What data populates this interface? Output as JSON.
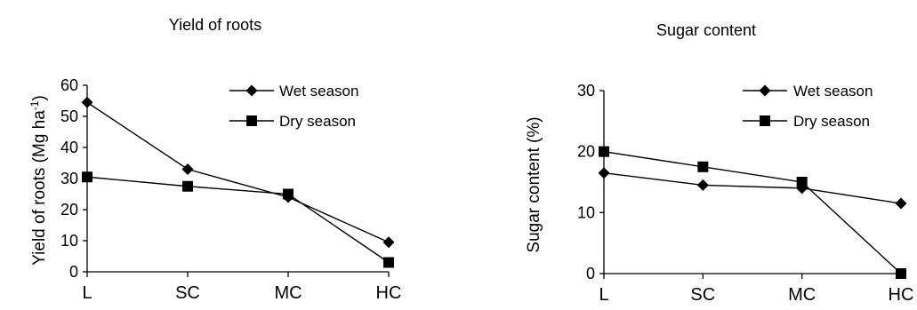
{
  "chart_data": [
    {
      "type": "line",
      "title": "Yield of roots",
      "ylabel": "Yield of roots (Mg ha",
      "ylabel_sup": "-1",
      "ylabel_close": ")",
      "xlabel": "",
      "categories": [
        "L",
        "SC",
        "MC",
        "HC"
      ],
      "ylim": [
        0,
        60
      ],
      "yticks": [
        "0",
        "10",
        "20",
        "30",
        "40",
        "50",
        "60"
      ],
      "grid": false,
      "legend_position": "top-right",
      "series": [
        {
          "name": "Wet season",
          "marker": "diamond",
          "values": [
            54.5,
            33.0,
            24.0,
            9.5
          ]
        },
        {
          "name": "Dry season",
          "marker": "square",
          "values": [
            30.5,
            27.5,
            25.0,
            3.0
          ]
        }
      ]
    },
    {
      "type": "line",
      "title": "Sugar content",
      "ylabel": "Sugar content (%)",
      "ylabel_sup": "",
      "ylabel_close": "",
      "xlabel": "",
      "categories": [
        "L",
        "SC",
        "MC",
        "HC"
      ],
      "ylim": [
        0,
        30
      ],
      "yticks": [
        "0",
        "10",
        "20",
        "30"
      ],
      "grid": false,
      "legend_position": "top-right",
      "series": [
        {
          "name": "Wet season",
          "marker": "diamond",
          "values": [
            16.5,
            14.5,
            14.0,
            11.5
          ]
        },
        {
          "name": "Dry season",
          "marker": "square",
          "values": [
            20.0,
            17.5,
            15.0,
            0.0
          ]
        }
      ]
    }
  ]
}
